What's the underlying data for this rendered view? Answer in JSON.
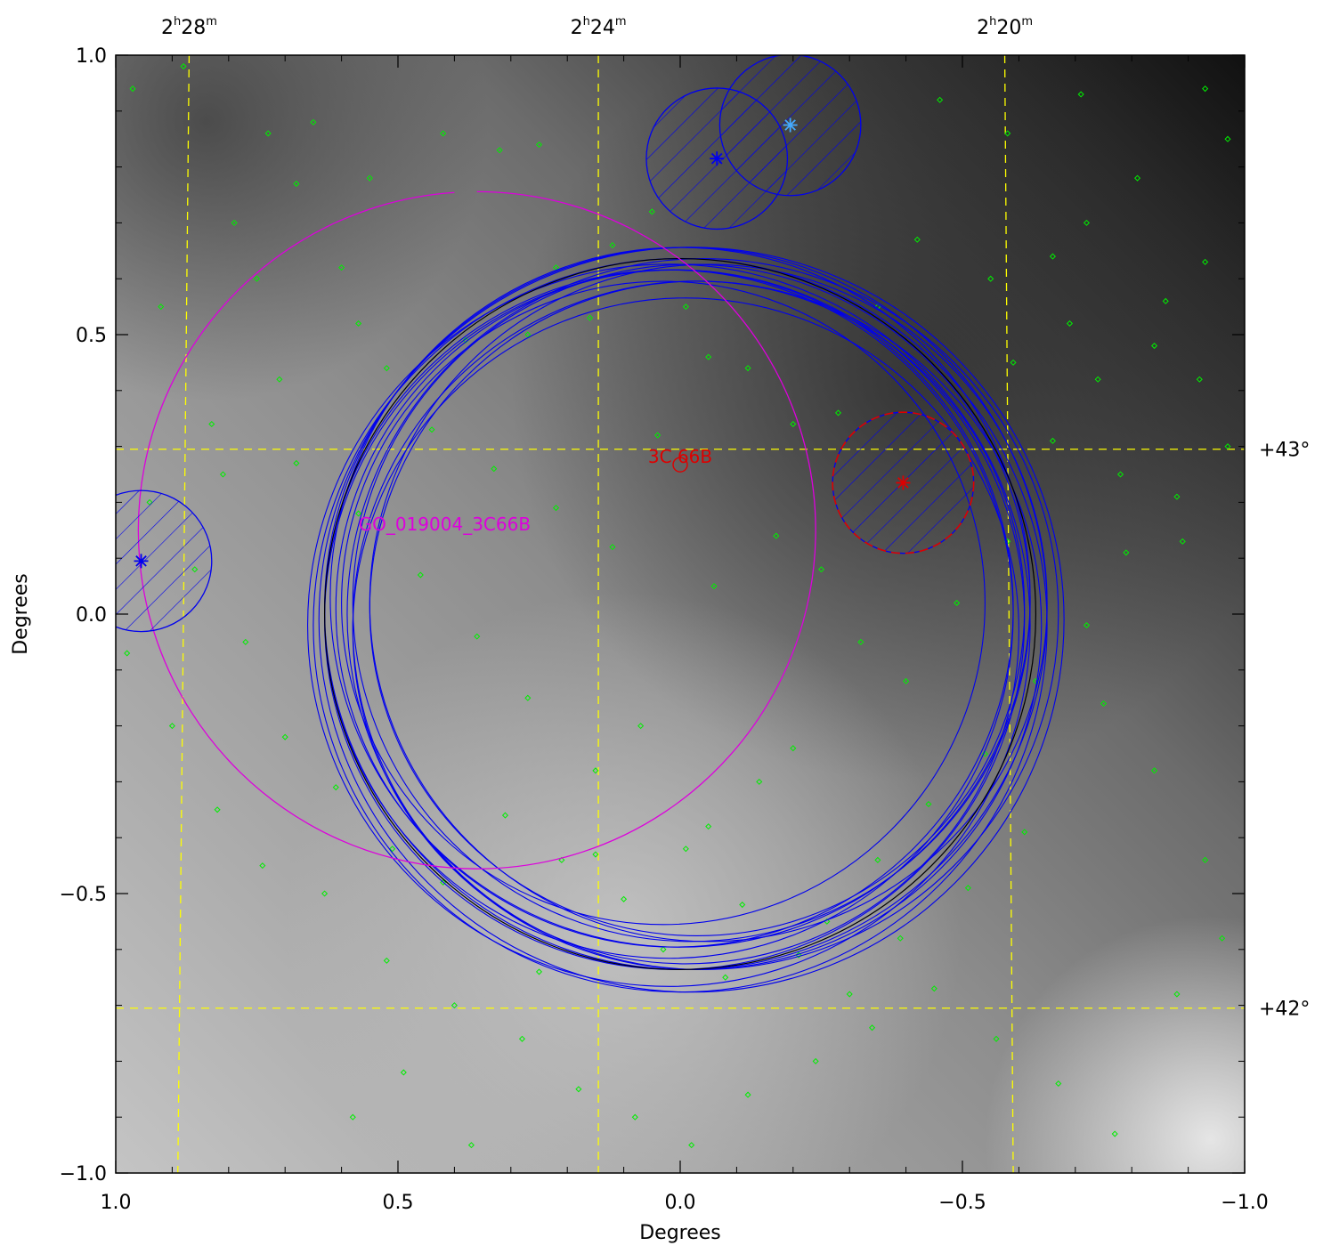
{
  "chart_data": {
    "type": "scatter",
    "title": "",
    "xlabel": "Degrees",
    "ylabel": "Degrees",
    "xlim": [
      1.0,
      -1.0
    ],
    "ylim": [
      -1.0,
      1.0
    ],
    "x_ticks": [
      1.0,
      0.5,
      0.0,
      -0.5,
      -1.0
    ],
    "x_tick_labels": [
      "1.0",
      "0.5",
      "0.0",
      "−0.5",
      "−1.0"
    ],
    "y_ticks": [
      1.0,
      0.5,
      0.0,
      -0.5,
      -1.0
    ],
    "y_tick_labels": [
      "1.0",
      "0.5",
      "0.0",
      "−0.5",
      "−1.0"
    ],
    "background": "grayscale sky intensity map",
    "ra_grid": [
      {
        "label_h": "2",
        "label_m": "28",
        "x_top": 0.87,
        "x_bottom": 0.89
      },
      {
        "label_h": "2",
        "label_m": "24",
        "x_top": 0.145,
        "x_bottom": 0.145
      },
      {
        "label_h": "2",
        "label_m": "20",
        "x_top": -0.575,
        "x_bottom": -0.59
      }
    ],
    "dec_grid": [
      {
        "label": "+43°",
        "y_left": 0.295,
        "y_right": 0.295
      },
      {
        "label": "+42°",
        "y_left": -0.705,
        "y_right": -0.705
      }
    ],
    "grid_color": "#ffff00",
    "pointing_circles": {
      "color": "#0000ee",
      "black_circle": {
        "x": 0.0,
        "y": 0.0,
        "r": 0.63
      },
      "circles": [
        {
          "x": -0.01,
          "y": 0.01,
          "r": 0.64
        },
        {
          "x": 0.01,
          "y": -0.01,
          "r": 0.62
        },
        {
          "x": -0.02,
          "y": 0.02,
          "r": 0.6
        },
        {
          "x": 0.0,
          "y": -0.02,
          "r": 0.65
        },
        {
          "x": -0.03,
          "y": 0.01,
          "r": 0.58
        },
        {
          "x": 0.02,
          "y": 0.0,
          "r": 0.61
        },
        {
          "x": -0.01,
          "y": -0.03,
          "r": 0.59
        },
        {
          "x": 0.0,
          "y": 0.03,
          "r": 0.62
        },
        {
          "x": -0.04,
          "y": 0.0,
          "r": 0.63
        },
        {
          "x": 0.03,
          "y": 0.02,
          "r": 0.57
        },
        {
          "x": -0.02,
          "y": -0.01,
          "r": 0.66
        },
        {
          "x": 0.01,
          "y": 0.01,
          "r": 0.6
        },
        {
          "x": -0.03,
          "y": -0.02,
          "r": 0.61
        },
        {
          "x": 0.02,
          "y": -0.02,
          "r": 0.64
        },
        {
          "x": -0.05,
          "y": 0.02,
          "r": 0.6
        }
      ]
    },
    "guest_observer_circle": {
      "label": "GO_019004_3C66B",
      "x": 0.36,
      "y": 0.15,
      "r": 0.6,
      "color": "#dd00dd",
      "gap_from": 0.4,
      "gap_to": 0.36
    },
    "target": {
      "label": "3C 66B",
      "x": 0.0,
      "y": 0.28,
      "color": "#dd0000"
    },
    "hatched_sources": [
      {
        "x": -0.065,
        "y": 0.815,
        "r": 0.125,
        "star_color": "#0000ee",
        "edge_color": "#0000ee"
      },
      {
        "x": -0.195,
        "y": 0.875,
        "r": 0.125,
        "star_color": "#44aaff",
        "edge_color": "#0000ee"
      },
      {
        "x": 0.955,
        "y": 0.095,
        "r": 0.125,
        "star_color": "#0000ee",
        "edge_color": "#0000ee"
      },
      {
        "x": -0.395,
        "y": 0.235,
        "r": 0.125,
        "star_color": "#dd0000",
        "edge_color": "#dd0000"
      }
    ],
    "green_points_color": "#00ee00",
    "green_points": [
      [
        0.97,
        0.94
      ],
      [
        0.88,
        0.98
      ],
      [
        0.73,
        0.86
      ],
      [
        0.65,
        0.88
      ],
      [
        0.55,
        0.78
      ],
      [
        0.42,
        0.86
      ],
      [
        0.32,
        0.83
      ],
      [
        0.25,
        0.84
      ],
      [
        0.92,
        0.55
      ],
      [
        0.75,
        0.6
      ],
      [
        0.6,
        0.62
      ],
      [
        0.38,
        0.49
      ],
      [
        0.22,
        0.62
      ],
      [
        0.12,
        0.66
      ],
      [
        0.04,
        0.32
      ],
      [
        -0.05,
        0.46
      ],
      [
        -0.12,
        0.44
      ],
      [
        -0.2,
        0.34
      ],
      [
        -0.28,
        0.36
      ],
      [
        -0.35,
        0.55
      ],
      [
        -0.42,
        0.67
      ],
      [
        -0.55,
        0.6
      ],
      [
        -0.66,
        0.64
      ],
      [
        -0.72,
        0.7
      ],
      [
        -0.81,
        0.78
      ],
      [
        -0.86,
        0.56
      ],
      [
        -0.92,
        0.42
      ],
      [
        -0.97,
        0.3
      ],
      [
        -0.88,
        0.21
      ],
      [
        -0.79,
        0.11
      ],
      [
        -0.72,
        -0.02
      ],
      [
        -0.63,
        -0.12
      ],
      [
        -0.54,
        -0.25
      ],
      [
        -0.44,
        -0.34
      ],
      [
        -0.35,
        -0.44
      ],
      [
        -0.26,
        -0.55
      ],
      [
        -0.2,
        -0.24
      ],
      [
        -0.14,
        -0.3
      ],
      [
        -0.05,
        -0.38
      ],
      [
        0.07,
        -0.2
      ],
      [
        0.15,
        -0.28
      ],
      [
        0.27,
        -0.15
      ],
      [
        0.36,
        -0.04
      ],
      [
        0.46,
        0.07
      ],
      [
        0.57,
        0.18
      ],
      [
        0.68,
        0.27
      ],
      [
        0.83,
        0.34
      ],
      [
        0.94,
        0.2
      ],
      [
        0.98,
        -0.07
      ],
      [
        0.9,
        -0.2
      ],
      [
        0.82,
        -0.35
      ],
      [
        0.74,
        -0.45
      ],
      [
        0.63,
        -0.5
      ],
      [
        0.52,
        -0.62
      ],
      [
        0.4,
        -0.7
      ],
      [
        0.28,
        -0.76
      ],
      [
        0.18,
        -0.85
      ],
      [
        0.08,
        -0.9
      ],
      [
        -0.02,
        -0.95
      ],
      [
        -0.12,
        -0.86
      ],
      [
        -0.24,
        -0.8
      ],
      [
        -0.34,
        -0.74
      ],
      [
        -0.45,
        -0.67
      ],
      [
        -0.56,
        -0.76
      ],
      [
        -0.67,
        -0.84
      ],
      [
        -0.77,
        -0.93
      ],
      [
        -0.88,
        -0.68
      ],
      [
        -0.96,
        -0.58
      ],
      [
        -0.93,
        -0.44
      ],
      [
        -0.84,
        -0.28
      ],
      [
        -0.75,
        -0.16
      ],
      [
        0.58,
        -0.9
      ],
      [
        0.49,
        -0.82
      ],
      [
        0.37,
        -0.95
      ],
      [
        0.25,
        -0.64
      ],
      [
        0.15,
        -0.43
      ],
      [
        0.03,
        -0.6
      ],
      [
        -0.08,
        -0.65
      ],
      [
        0.79,
        0.7
      ],
      [
        0.68,
        0.77
      ],
      [
        0.52,
        0.44
      ],
      [
        0.44,
        0.33
      ],
      [
        0.33,
        0.26
      ],
      [
        0.22,
        0.19
      ],
      [
        0.12,
        0.12
      ],
      [
        -0.06,
        0.05
      ],
      [
        -0.17,
        0.14
      ],
      [
        -0.25,
        0.08
      ],
      [
        -0.32,
        -0.05
      ],
      [
        -0.4,
        -0.12
      ],
      [
        -0.49,
        0.02
      ],
      [
        -0.58,
        0.13
      ],
      [
        -0.66,
        0.31
      ],
      [
        -0.74,
        0.42
      ],
      [
        -0.84,
        0.48
      ],
      [
        -0.93,
        0.63
      ],
      [
        0.86,
        0.08
      ],
      [
        0.77,
        -0.05
      ],
      [
        0.7,
        -0.22
      ],
      [
        0.61,
        -0.31
      ],
      [
        0.51,
        -0.42
      ],
      [
        0.42,
        -0.48
      ],
      [
        0.31,
        -0.36
      ],
      [
        0.21,
        -0.44
      ],
      [
        0.1,
        -0.51
      ],
      [
        -0.01,
        -0.42
      ],
      [
        -0.11,
        -0.52
      ],
      [
        -0.21,
        -0.61
      ],
      [
        -0.3,
        -0.68
      ],
      [
        -0.39,
        -0.58
      ],
      [
        -0.51,
        -0.49
      ],
      [
        -0.61,
        -0.39
      ],
      [
        0.05,
        0.72
      ],
      [
        -0.01,
        0.55
      ],
      [
        0.16,
        0.53
      ],
      [
        0.27,
        0.5
      ],
      [
        0.57,
        0.52
      ],
      [
        0.71,
        0.42
      ],
      [
        0.81,
        0.25
      ],
      [
        -0.59,
        0.45
      ],
      [
        -0.69,
        0.52
      ],
      [
        -0.78,
        0.25
      ],
      [
        -0.89,
        0.13
      ],
      [
        -0.97,
        0.85
      ],
      [
        -0.93,
        0.94
      ],
      [
        -0.71,
        0.93
      ],
      [
        -0.58,
        0.86
      ],
      [
        -0.46,
        0.92
      ]
    ]
  }
}
